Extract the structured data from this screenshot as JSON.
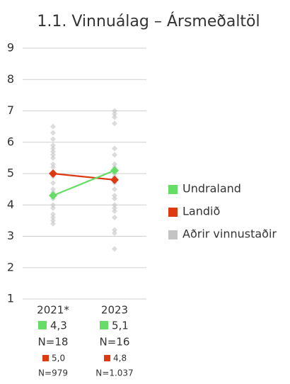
{
  "chart_data": {
    "type": "line",
    "title": "1.1. Vinnuálag – Ársmeðaltöl",
    "categories": [
      "2021*",
      "2023"
    ],
    "ylim": [
      1,
      9
    ],
    "yticks": [
      1,
      2,
      3,
      4,
      5,
      6,
      7,
      8,
      9
    ],
    "grid": true,
    "legend": "right",
    "series": [
      {
        "name": "Undraland",
        "color": "#66dd66",
        "values": [
          4.3,
          5.1
        ],
        "value_labels": [
          "4,3",
          "5,1"
        ],
        "n_labels": [
          "N=18",
          "N=16"
        ]
      },
      {
        "name": "Landið",
        "color": "#dd3a11",
        "values": [
          5.0,
          4.8
        ],
        "value_labels": [
          "5,0",
          "4,8"
        ],
        "n_labels": [
          "N=979",
          "N=1.037"
        ]
      },
      {
        "name": "Aðrir vinnustaðir",
        "color": "#c4c4c4",
        "values": [
          [
            6.5,
            6.3,
            6.1,
            5.9,
            5.8,
            5.7,
            5.6,
            5.5,
            5.3,
            5.2,
            5.0,
            4.9,
            4.7,
            4.5,
            4.4,
            4.2,
            4.0,
            3.9,
            3.7,
            3.6,
            3.5,
            3.4
          ],
          [
            7.0,
            6.9,
            6.8,
            6.6,
            5.8,
            5.6,
            5.3,
            5.2,
            5.0,
            4.9,
            4.7,
            4.5,
            4.3,
            4.2,
            4.0,
            3.9,
            3.8,
            3.6,
            3.2,
            3.1,
            2.6
          ]
        ]
      }
    ]
  }
}
